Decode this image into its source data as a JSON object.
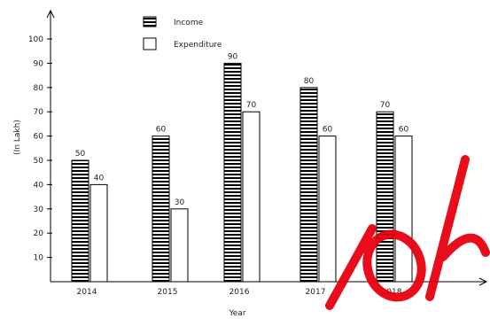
{
  "chart_data": {
    "type": "bar",
    "categories": [
      "2014",
      "2015",
      "2016",
      "2017",
      "2018"
    ],
    "series": [
      {
        "name": "Income",
        "values": [
          50,
          60,
          90,
          80,
          70
        ],
        "pattern": "horizontal-stripes",
        "color": "#000000"
      },
      {
        "name": "Expenditure",
        "values": [
          40,
          30,
          70,
          60,
          60
        ],
        "pattern": "hollow",
        "color": "#000000"
      }
    ],
    "title": "",
    "xlabel": "Year",
    "ylabel": "(In Lakh)",
    "ylim": [
      0,
      100
    ],
    "yticks": [
      10,
      20,
      30,
      40,
      50,
      60,
      70,
      80,
      90,
      100
    ],
    "grid": false,
    "legend": "top-center",
    "data_labels": true
  },
  "watermark": {
    "color": "#e8000f",
    "icon": "red-brand-watermark"
  }
}
